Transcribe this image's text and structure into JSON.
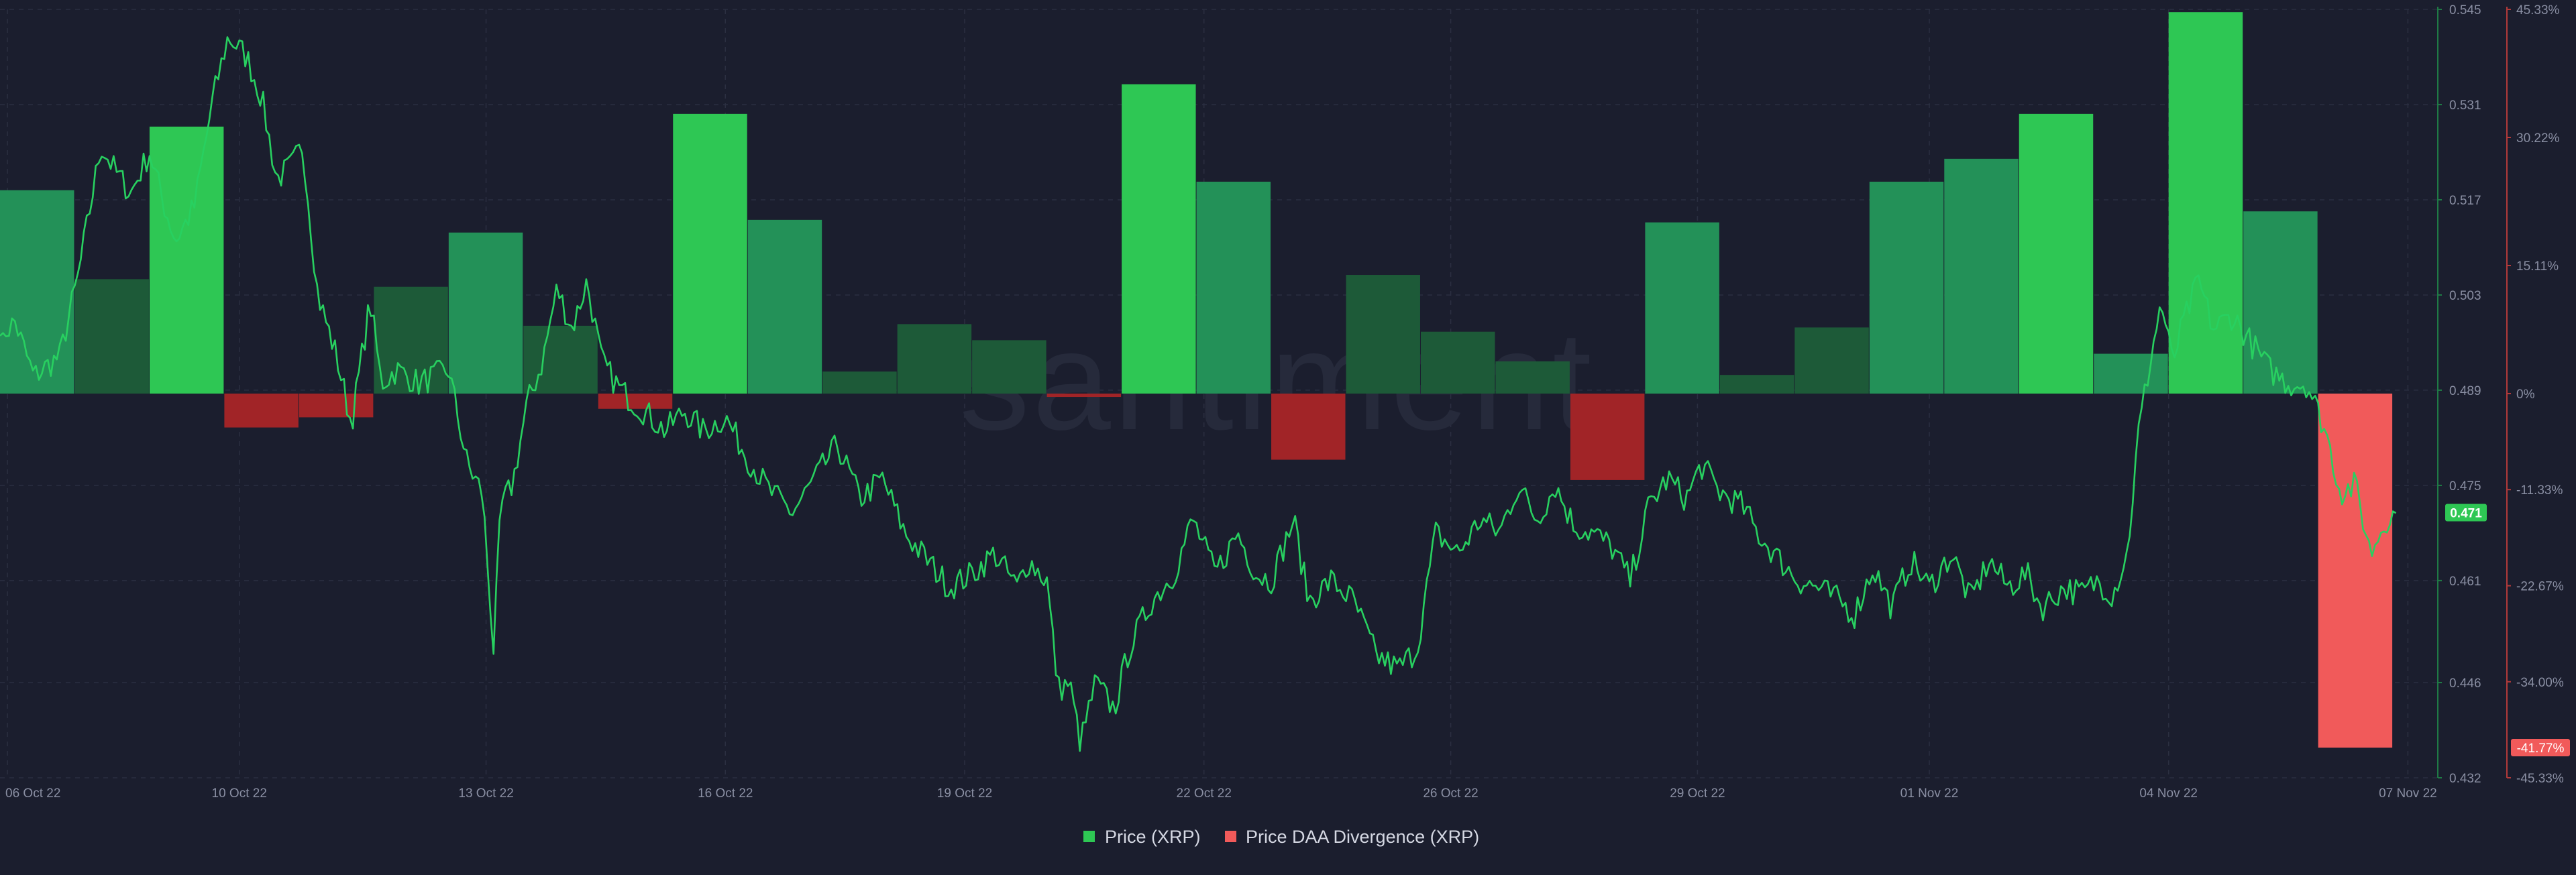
{
  "watermark": "santiment",
  "colors": {
    "background": "#1b1e2e",
    "grid": "#2b2f41",
    "price_line": "#28d060",
    "positive_strong": "#2ec754",
    "positive_medium": "#239158",
    "positive_weak": "#1d5a38",
    "negative_strong": "#f15a5a",
    "negative_medium": "#a12427",
    "negative_weak": "#5e1a1d",
    "right_axis_line": "#b23a3a",
    "left_axis_line": "#1f7a45",
    "price_badge": "#2ec754",
    "divergence_badge": "#f15a5a"
  },
  "chart_data": {
    "type": "bar+line",
    "title": "",
    "x_ticks": [
      "06 Oct 22",
      "10 Oct 22",
      "13 Oct 22",
      "16 Oct 22",
      "19 Oct 22",
      "22 Oct 22",
      "26 Oct 22",
      "29 Oct 22",
      "01 Nov 22",
      "04 Nov 22",
      "07 Nov 22"
    ],
    "x_tick_days": [
      0.1,
      3.2,
      6.5,
      9.7,
      12.9,
      16.1,
      19.4,
      22.7,
      25.8,
      29.0,
      32.2
    ],
    "x_range": [
      0,
      32.6
    ],
    "price_axis": {
      "label": "Price (XRP)",
      "ticks": [
        "0.545",
        "0.531",
        "0.517",
        "0.503",
        "0.489",
        "0.475",
        "0.461",
        "0.446",
        "0.432"
      ],
      "range": [
        0.432,
        0.545
      ],
      "current_value": "0.471"
    },
    "divergence_axis": {
      "label": "Price DAA Divergence (XRP)",
      "ticks": [
        "45.33%",
        "30.22%",
        "15.11%",
        "0%",
        "-11.33%",
        "-22.67%",
        "-34.00%",
        "-45.33%"
      ],
      "range": [
        -45.33,
        45.33
      ],
      "current_value": "-41.77%"
    },
    "legend": [
      "Price (XRP)",
      "Price DAA Divergence (XRP)"
    ],
    "divergence_bars": [
      {
        "day": 0,
        "value": 24.0,
        "strength": "medium"
      },
      {
        "day": 1,
        "value": 13.5,
        "strength": "weak"
      },
      {
        "day": 2,
        "value": 31.5,
        "strength": "strong"
      },
      {
        "day": 3,
        "value": -4.0,
        "strength": "medium"
      },
      {
        "day": 4,
        "value": -2.8,
        "strength": "medium"
      },
      {
        "day": 5,
        "value": 12.6,
        "strength": "weak"
      },
      {
        "day": 6,
        "value": 19.0,
        "strength": "medium"
      },
      {
        "day": 7,
        "value": 8.0,
        "strength": "weak"
      },
      {
        "day": 8,
        "value": -1.8,
        "strength": "medium"
      },
      {
        "day": 9,
        "value": 33.0,
        "strength": "strong"
      },
      {
        "day": 10,
        "value": 20.5,
        "strength": "medium"
      },
      {
        "day": 11,
        "value": 2.6,
        "strength": "weak"
      },
      {
        "day": 12,
        "value": 8.2,
        "strength": "weak"
      },
      {
        "day": 13,
        "value": 6.3,
        "strength": "weak"
      },
      {
        "day": 14,
        "value": -0.4,
        "strength": "medium"
      },
      {
        "day": 15,
        "value": 36.5,
        "strength": "strong"
      },
      {
        "day": 16,
        "value": 25.0,
        "strength": "medium"
      },
      {
        "day": 17,
        "value": -7.8,
        "strength": "medium"
      },
      {
        "day": 18,
        "value": 14.0,
        "strength": "weak"
      },
      {
        "day": 19,
        "value": 7.3,
        "strength": "weak"
      },
      {
        "day": 20,
        "value": 3.8,
        "strength": "weak"
      },
      {
        "day": 21,
        "value": -10.2,
        "strength": "medium"
      },
      {
        "day": 22,
        "value": 20.2,
        "strength": "medium"
      },
      {
        "day": 23,
        "value": 2.2,
        "strength": "weak"
      },
      {
        "day": 24,
        "value": 7.8,
        "strength": "weak"
      },
      {
        "day": 25,
        "value": 25.0,
        "strength": "medium"
      },
      {
        "day": 26,
        "value": 27.7,
        "strength": "medium"
      },
      {
        "day": 27,
        "value": 33.0,
        "strength": "strong"
      },
      {
        "day": 28,
        "value": 4.7,
        "strength": "medium"
      },
      {
        "day": 29,
        "value": 45.0,
        "strength": "strong"
      },
      {
        "day": 30,
        "value": 21.5,
        "strength": "medium"
      },
      {
        "day": 31,
        "value": -41.77,
        "strength": "strong"
      }
    ],
    "price_keypoints": [
      [
        0.0,
        0.497
      ],
      [
        0.2,
        0.499
      ],
      [
        0.45,
        0.491
      ],
      [
        0.8,
        0.494
      ],
      [
        1.05,
        0.506
      ],
      [
        1.35,
        0.525
      ],
      [
        1.55,
        0.521
      ],
      [
        1.75,
        0.518
      ],
      [
        2.0,
        0.524
      ],
      [
        2.2,
        0.516
      ],
      [
        2.35,
        0.511
      ],
      [
        2.6,
        0.516
      ],
      [
        2.85,
        0.532
      ],
      [
        3.05,
        0.541
      ],
      [
        3.3,
        0.538
      ],
      [
        3.5,
        0.532
      ],
      [
        3.7,
        0.52
      ],
      [
        3.9,
        0.522
      ],
      [
        4.05,
        0.525
      ],
      [
        4.25,
        0.503
      ],
      [
        4.5,
        0.494
      ],
      [
        4.7,
        0.484
      ],
      [
        4.95,
        0.502
      ],
      [
        5.1,
        0.49
      ],
      [
        5.3,
        0.492
      ],
      [
        5.6,
        0.49
      ],
      [
        6.0,
        0.492
      ],
      [
        6.25,
        0.478
      ],
      [
        6.45,
        0.474
      ],
      [
        6.6,
        0.451
      ],
      [
        6.7,
        0.472
      ],
      [
        6.85,
        0.475
      ],
      [
        7.05,
        0.487
      ],
      [
        7.25,
        0.493
      ],
      [
        7.45,
        0.504
      ],
      [
        7.65,
        0.498
      ],
      [
        7.85,
        0.505
      ],
      [
        8.05,
        0.493
      ],
      [
        8.3,
        0.489
      ],
      [
        8.6,
        0.486
      ],
      [
        8.9,
        0.483
      ],
      [
        9.15,
        0.486
      ],
      [
        9.4,
        0.483
      ],
      [
        9.7,
        0.485
      ],
      [
        10.0,
        0.479
      ],
      [
        10.3,
        0.474
      ],
      [
        10.6,
        0.471
      ],
      [
        10.9,
        0.476
      ],
      [
        11.2,
        0.481
      ],
      [
        11.5,
        0.473
      ],
      [
        11.8,
        0.476
      ],
      [
        12.1,
        0.468
      ],
      [
        12.4,
        0.464
      ],
      [
        12.7,
        0.46
      ],
      [
        13.0,
        0.462
      ],
      [
        13.3,
        0.465
      ],
      [
        13.6,
        0.46
      ],
      [
        13.75,
        0.464
      ],
      [
        14.0,
        0.461
      ],
      [
        14.15,
        0.445
      ],
      [
        14.3,
        0.446
      ],
      [
        14.45,
        0.437
      ],
      [
        14.65,
        0.446
      ],
      [
        14.9,
        0.442
      ],
      [
        15.1,
        0.451
      ],
      [
        15.4,
        0.458
      ],
      [
        15.7,
        0.462
      ],
      [
        15.95,
        0.47
      ],
      [
        16.25,
        0.462
      ],
      [
        16.55,
        0.468
      ],
      [
        16.8,
        0.462
      ],
      [
        17.0,
        0.461
      ],
      [
        17.3,
        0.47
      ],
      [
        17.5,
        0.458
      ],
      [
        17.8,
        0.461
      ],
      [
        18.1,
        0.458
      ],
      [
        18.4,
        0.45
      ],
      [
        18.7,
        0.448
      ],
      [
        18.95,
        0.451
      ],
      [
        19.2,
        0.468
      ],
      [
        19.5,
        0.465
      ],
      [
        19.8,
        0.47
      ],
      [
        20.05,
        0.468
      ],
      [
        20.3,
        0.475
      ],
      [
        20.55,
        0.47
      ],
      [
        20.8,
        0.475
      ],
      [
        21.05,
        0.469
      ],
      [
        21.3,
        0.468
      ],
      [
        21.55,
        0.466
      ],
      [
        21.8,
        0.461
      ],
      [
        22.05,
        0.472
      ],
      [
        22.3,
        0.476
      ],
      [
        22.55,
        0.473
      ],
      [
        22.75,
        0.478
      ],
      [
        23.0,
        0.474
      ],
      [
        23.3,
        0.472
      ],
      [
        23.5,
        0.468
      ],
      [
        23.8,
        0.464
      ],
      [
        24.05,
        0.461
      ],
      [
        24.3,
        0.46
      ],
      [
        24.6,
        0.458
      ],
      [
        24.8,
        0.456
      ],
      [
        25.05,
        0.463
      ],
      [
        25.3,
        0.457
      ],
      [
        25.55,
        0.464
      ],
      [
        25.8,
        0.46
      ],
      [
        26.1,
        0.465
      ],
      [
        26.35,
        0.458
      ],
      [
        26.6,
        0.464
      ],
      [
        26.85,
        0.46
      ],
      [
        27.1,
        0.462
      ],
      [
        27.3,
        0.457
      ],
      [
        27.6,
        0.46
      ],
      [
        27.85,
        0.459
      ],
      [
        28.05,
        0.461
      ],
      [
        28.25,
        0.459
      ],
      [
        28.45,
        0.465
      ],
      [
        28.6,
        0.483
      ],
      [
        28.75,
        0.493
      ],
      [
        28.9,
        0.502
      ],
      [
        29.05,
        0.493
      ],
      [
        29.2,
        0.499
      ],
      [
        29.4,
        0.505
      ],
      [
        29.6,
        0.498
      ],
      [
        29.85,
        0.5
      ],
      [
        30.1,
        0.496
      ],
      [
        30.35,
        0.492
      ],
      [
        30.6,
        0.49
      ],
      [
        30.85,
        0.49
      ],
      [
        31.1,
        0.483
      ],
      [
        31.3,
        0.474
      ],
      [
        31.5,
        0.475
      ],
      [
        31.7,
        0.465
      ],
      [
        31.9,
        0.47
      ],
      [
        32.05,
        0.471
      ]
    ]
  }
}
